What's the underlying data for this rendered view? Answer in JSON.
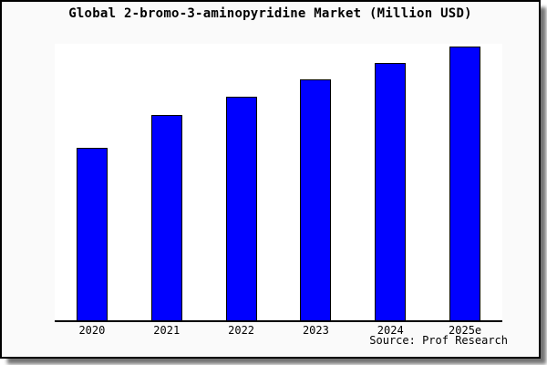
{
  "card": {
    "background": "#fafafa",
    "border_color": "#000000"
  },
  "title": "Global 2-bromo-3-aminopyridine Market (Million USD)",
  "source_note": "Source: Prof Research",
  "chart_data": {
    "type": "bar",
    "title": "Global 2-bromo-3-aminopyridine Market (Million USD)",
    "categories": [
      "2020",
      "2021",
      "2022",
      "2023",
      "2024",
      "2025e"
    ],
    "values": [
      189,
      225,
      245,
      264,
      282,
      300
    ],
    "xlabel": "",
    "ylabel": "",
    "ylim": [
      0,
      303
    ],
    "grid": false,
    "legend": false,
    "y_axis_shown": false,
    "bar_color": "#0000ff",
    "bar_border_color": "#000000",
    "axis_line_color": "#000000",
    "plot_background": "#ffffff",
    "source_note": "Source: Prof Research"
  }
}
